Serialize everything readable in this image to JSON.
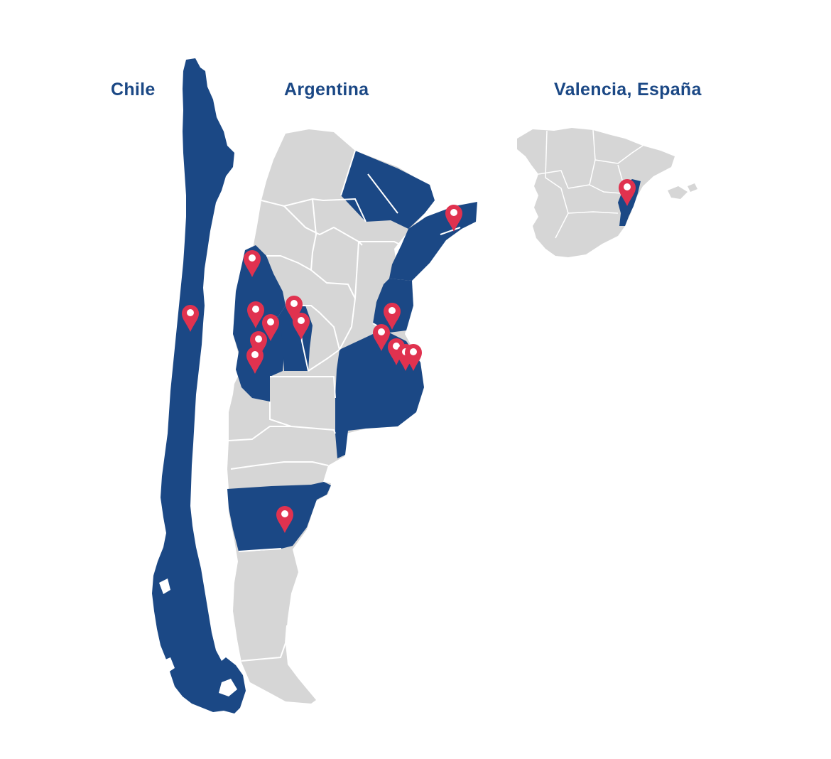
{
  "titles": {
    "chile": "Chile",
    "argentina": "Argentina",
    "spain": "Valencia, España"
  },
  "colors": {
    "highlight": "#1b4885",
    "land": "#d6d6d6",
    "border": "#ffffff",
    "pin": "#e0324f",
    "title": "#1b4885"
  },
  "legend_semantics": {
    "highlighted_regions": [
      "Chile",
      "Mendoza",
      "San Juan",
      "San Luis",
      "Misiones",
      "Corrientes",
      "Entre Ríos",
      "Buenos Aires",
      "Santa Cruz",
      "Valencia"
    ]
  }
}
